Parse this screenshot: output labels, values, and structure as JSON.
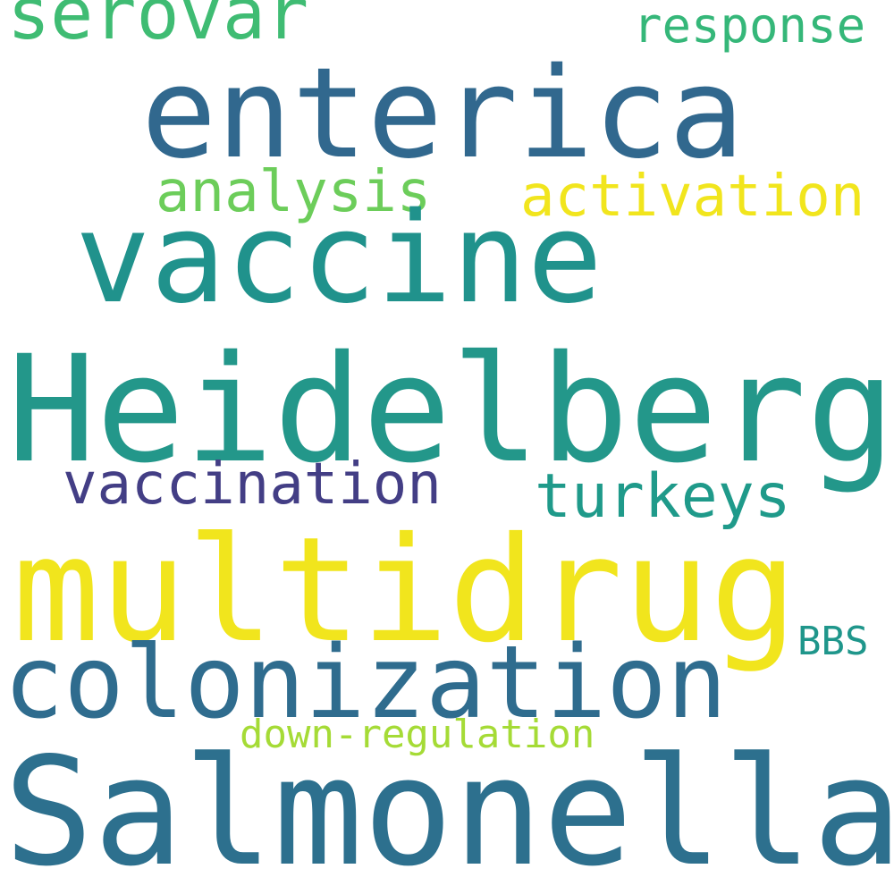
{
  "word_cloud": {
    "words": [
      {
        "text": "serovar",
        "color": "#3fbc73"
      },
      {
        "text": "response",
        "color": "#35b779"
      },
      {
        "text": "enterica",
        "color": "#31688e"
      },
      {
        "text": "analysis",
        "color": "#6ccd5a"
      },
      {
        "text": "activation",
        "color": "#f1e51d"
      },
      {
        "text": "vaccine",
        "color": "#20928c"
      },
      {
        "text": "Heidelberg",
        "color": "#23978a"
      },
      {
        "text": "vaccination",
        "color": "#433e85"
      },
      {
        "text": "turkeys",
        "color": "#1f9a8a"
      },
      {
        "text": "multidrug",
        "color": "#f1e51d"
      },
      {
        "text": "BBS",
        "color": "#1f968b"
      },
      {
        "text": "colonization",
        "color": "#2f6c8e"
      },
      {
        "text": "down-regulation",
        "color": "#a5db36"
      },
      {
        "text": "Salmonella",
        "color": "#2d708e"
      }
    ]
  }
}
